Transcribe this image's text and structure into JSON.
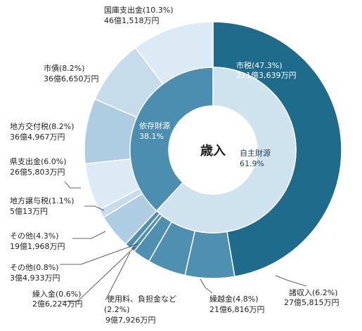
{
  "chart_data": {
    "type": "pie",
    "title": "",
    "center_label": "歳入",
    "colors": {
      "own_revenue_outer": "#1e6b8c",
      "own_revenue_inner": "#cfe3ef",
      "dependent_inner": "#4b8eb0",
      "dependent_outer_1": "#dbeaf4",
      "dependent_outer_2": "#c6dceb",
      "dependent_outer_3": "#afcde2",
      "own_others": "#4f8fb0"
    },
    "inner_ring": [
      {
        "name": "自主財源",
        "percent": 61.9,
        "label_pct": "61.9%"
      },
      {
        "name": "依存財源",
        "percent": 38.1,
        "label_pct": "38.1%"
      }
    ],
    "outer_ring": [
      {
        "name": "市税",
        "percent": 47.3,
        "pct_label": "(47.3%)",
        "amount": "211億3,639万円",
        "group": "own"
      },
      {
        "name": "諸収入",
        "percent": 6.2,
        "pct_label": "(6.2%)",
        "amount": "27億5,815万円",
        "group": "own"
      },
      {
        "name": "繰越金",
        "percent": 4.8,
        "pct_label": "(4.8%)",
        "amount": "21億6,816万円",
        "group": "own"
      },
      {
        "name": "使用料、負担金など",
        "percent": 2.2,
        "pct_label": "(2.2%)",
        "amount": "9億7,926万円",
        "group": "own"
      },
      {
        "name": "繰入金",
        "percent": 0.6,
        "pct_label": "(0.6%)",
        "amount": "2億6,224万円",
        "group": "own"
      },
      {
        "name": "その他",
        "percent": 0.8,
        "pct_label": "(0.8%)",
        "amount": "3億4,933万円",
        "group": "own"
      },
      {
        "name": "その他",
        "percent": 4.3,
        "pct_label": "(4.3%)",
        "amount": "19億1,968万円",
        "group": "dep"
      },
      {
        "name": "地方譲与税",
        "percent": 1.1,
        "pct_label": "(1.1%)",
        "amount": "5億13万円",
        "group": "dep"
      },
      {
        "name": "県支出金",
        "percent": 6.0,
        "pct_label": "(6.0%)",
        "amount": "26億5,803万円",
        "group": "dep"
      },
      {
        "name": "地方交付税",
        "percent": 8.2,
        "pct_label": "(8.2%)",
        "amount": "36億4,967万円",
        "group": "dep"
      },
      {
        "name": "市債",
        "percent": 8.2,
        "pct_label": "(8.2%)",
        "amount": "36億6,650万円",
        "group": "dep"
      },
      {
        "name": "国庫支出金",
        "percent": 10.3,
        "pct_label": "(10.3%)",
        "amount": "46億1,518万円",
        "group": "dep"
      }
    ]
  }
}
